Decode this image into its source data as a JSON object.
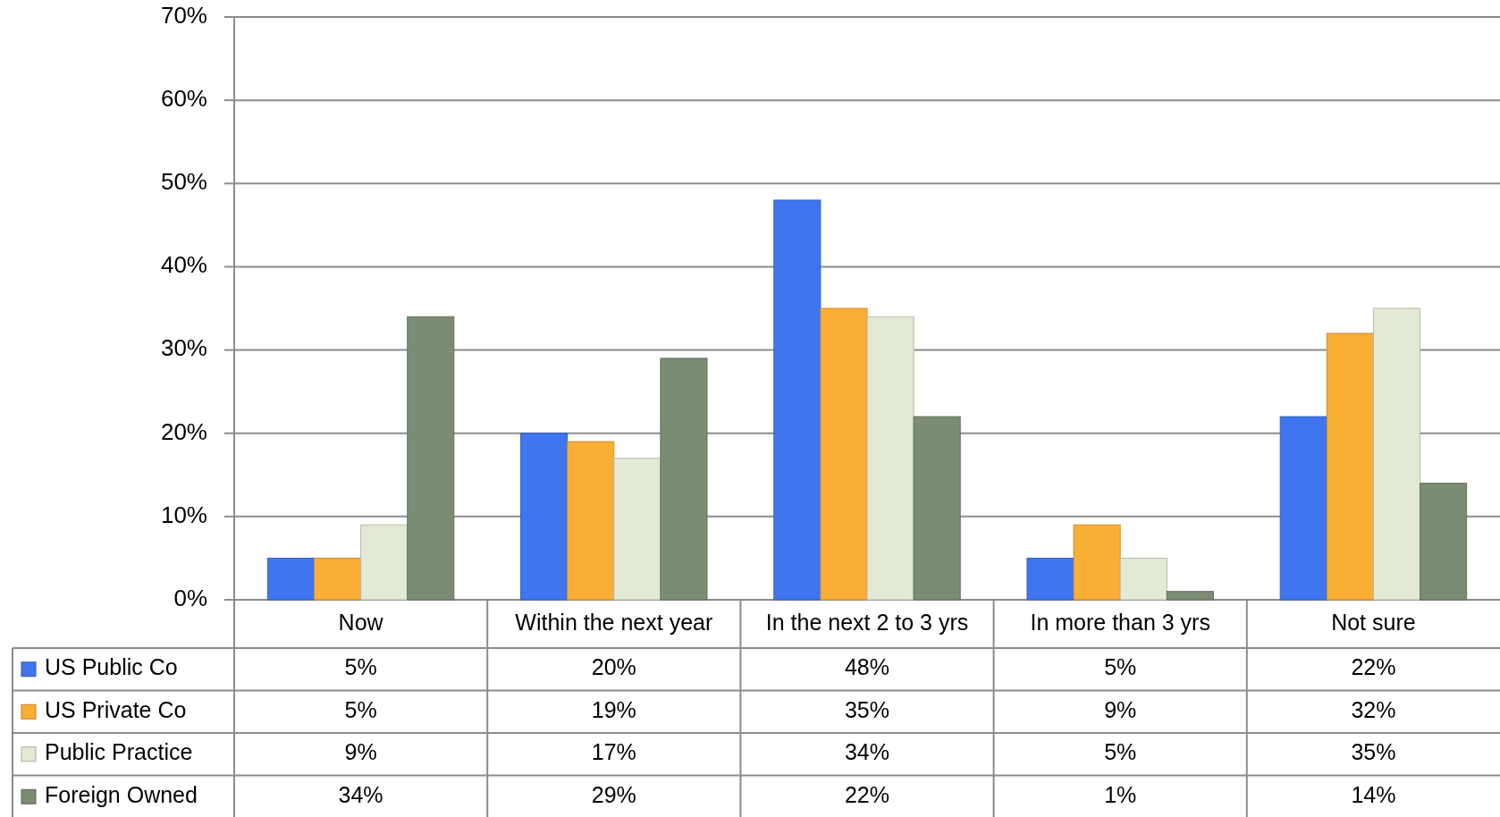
{
  "chart_data": {
    "type": "bar",
    "categories": [
      "Now",
      "Within the next year",
      "In the next 2 to 3 yrs",
      "In more than 3 yrs",
      "Not sure"
    ],
    "series": [
      {
        "name": "US Public Co",
        "color": "#3f75ee",
        "values": [
          5,
          20,
          48,
          5,
          22
        ],
        "value_labels": [
          "5%",
          "20%",
          "48%",
          "5%",
          "22%"
        ]
      },
      {
        "name": "US Private Co",
        "color": "#fbae35",
        "values": [
          5,
          19,
          35,
          9,
          32
        ],
        "value_labels": [
          "5%",
          "19%",
          "35%",
          "9%",
          "32%"
        ]
      },
      {
        "name": "Public Practice",
        "color": "#e2e9d4",
        "values": [
          9,
          17,
          34,
          5,
          35
        ],
        "value_labels": [
          "9%",
          "17%",
          "34%",
          "5%",
          "35%"
        ]
      },
      {
        "name": "Foreign Owned",
        "color": "#7b8b74",
        "values": [
          34,
          29,
          22,
          1,
          14
        ],
        "value_labels": [
          "34%",
          "29%",
          "22%",
          "1%",
          "14%"
        ]
      }
    ],
    "ylim": [
      0,
      70
    ],
    "yticks": [
      {
        "value": 0,
        "label": "0%"
      },
      {
        "value": 10,
        "label": "10%"
      },
      {
        "value": 20,
        "label": "20%"
      },
      {
        "value": 30,
        "label": "30%"
      },
      {
        "value": 40,
        "label": "40%"
      },
      {
        "value": 50,
        "label": "50%"
      },
      {
        "value": 60,
        "label": "60%"
      },
      {
        "value": 70,
        "label": "70%"
      }
    ],
    "grid": "y",
    "legend": "bottom"
  }
}
